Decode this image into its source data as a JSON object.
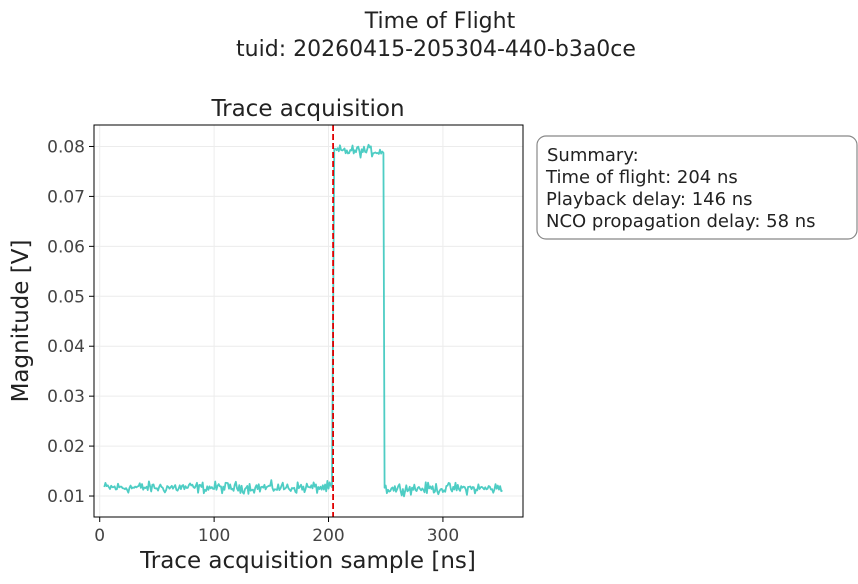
{
  "figure": {
    "title_line1": "Time of Flight",
    "title_line2": "tuid: 20260415-205304-440-b3a0ce"
  },
  "summary": {
    "lines": [
      "Summary:",
      "Time of flight: 204 ns",
      "Playback delay: 146 ns",
      "NCO propagation delay: 58 ns"
    ]
  },
  "chart_data": {
    "type": "line",
    "title": "Trace acquisition",
    "xlabel": "Trace acquisition sample [ns]",
    "ylabel": "Magnitude [V]",
    "xlim": [
      -5,
      370
    ],
    "ylim": [
      0.0058,
      0.0843
    ],
    "xticks": [
      0,
      100,
      200,
      300
    ],
    "yticks": [
      0.01,
      0.02,
      0.03,
      0.04,
      0.05,
      0.06,
      0.07,
      0.08
    ],
    "ytick_labels": [
      "0.01",
      "0.02",
      "0.03",
      "0.04",
      "0.05",
      "0.06",
      "0.07",
      "0.08"
    ],
    "grid": true,
    "series": [
      {
        "color": "#4ecdc4",
        "segments": [
          {
            "x_start": 4,
            "x_end": 203,
            "level": 0.0117
          },
          {
            "x_start": 205,
            "x_end": 248,
            "level": 0.0791
          },
          {
            "x_start": 249,
            "x_end": 352,
            "level": 0.0115
          }
        ]
      }
    ],
    "vline": {
      "x": 204,
      "color": "#e00000",
      "style": "dashed"
    }
  }
}
